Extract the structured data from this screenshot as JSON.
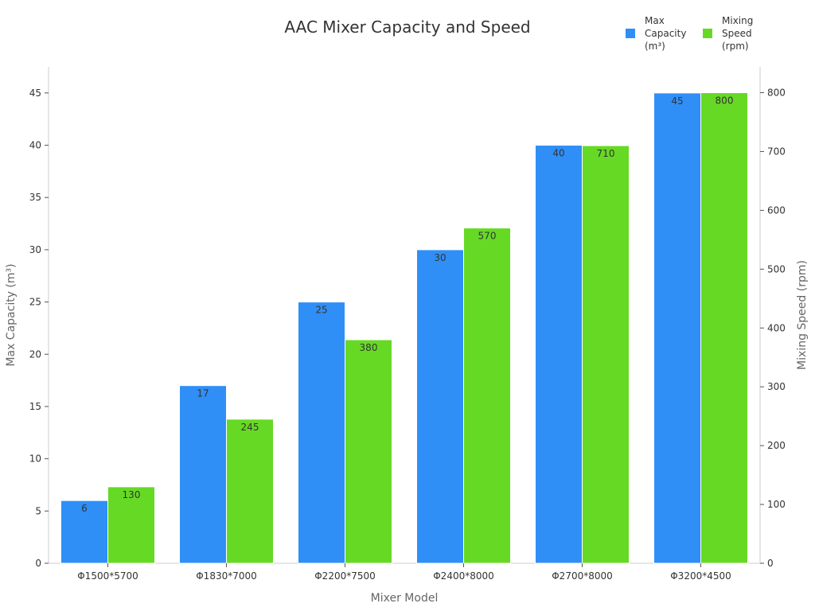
{
  "chart_data": {
    "type": "bar",
    "title": "AAC Mixer Capacity and Speed",
    "xlabel": "Mixer Model",
    "ylabel_left": "Max Capacity (m³)",
    "ylabel_right": "Mixing Speed (rpm)",
    "categories": [
      "Φ1500*5700",
      "Φ1830*7000",
      "Φ2200*7500",
      "Φ2400*8000",
      "Φ2700*8000",
      "Φ3200*4500"
    ],
    "series": [
      {
        "name": "Max Capacity (m³)",
        "legend_label": "Max\nCapacity\n(m³)",
        "axis": "left",
        "color": "#2f8ff7",
        "values": [
          6,
          17,
          25,
          30,
          40,
          45
        ]
      },
      {
        "name": "Mixing Speed (rpm)",
        "legend_label": "Mixing\nSpeed\n(rpm)",
        "axis": "right",
        "color": "#66d925",
        "values": [
          130,
          245,
          380,
          570,
          710,
          800
        ]
      }
    ],
    "ylim_left": [
      0,
      47.5
    ],
    "yticks_left": [
      0,
      5,
      10,
      15,
      20,
      25,
      30,
      35,
      40,
      45
    ],
    "ylim_right": [
      0,
      844
    ],
    "yticks_right": [
      0,
      100,
      200,
      300,
      400,
      500,
      600,
      700,
      800
    ],
    "grid": false,
    "legend_position": "top-right",
    "data_labels": true
  }
}
